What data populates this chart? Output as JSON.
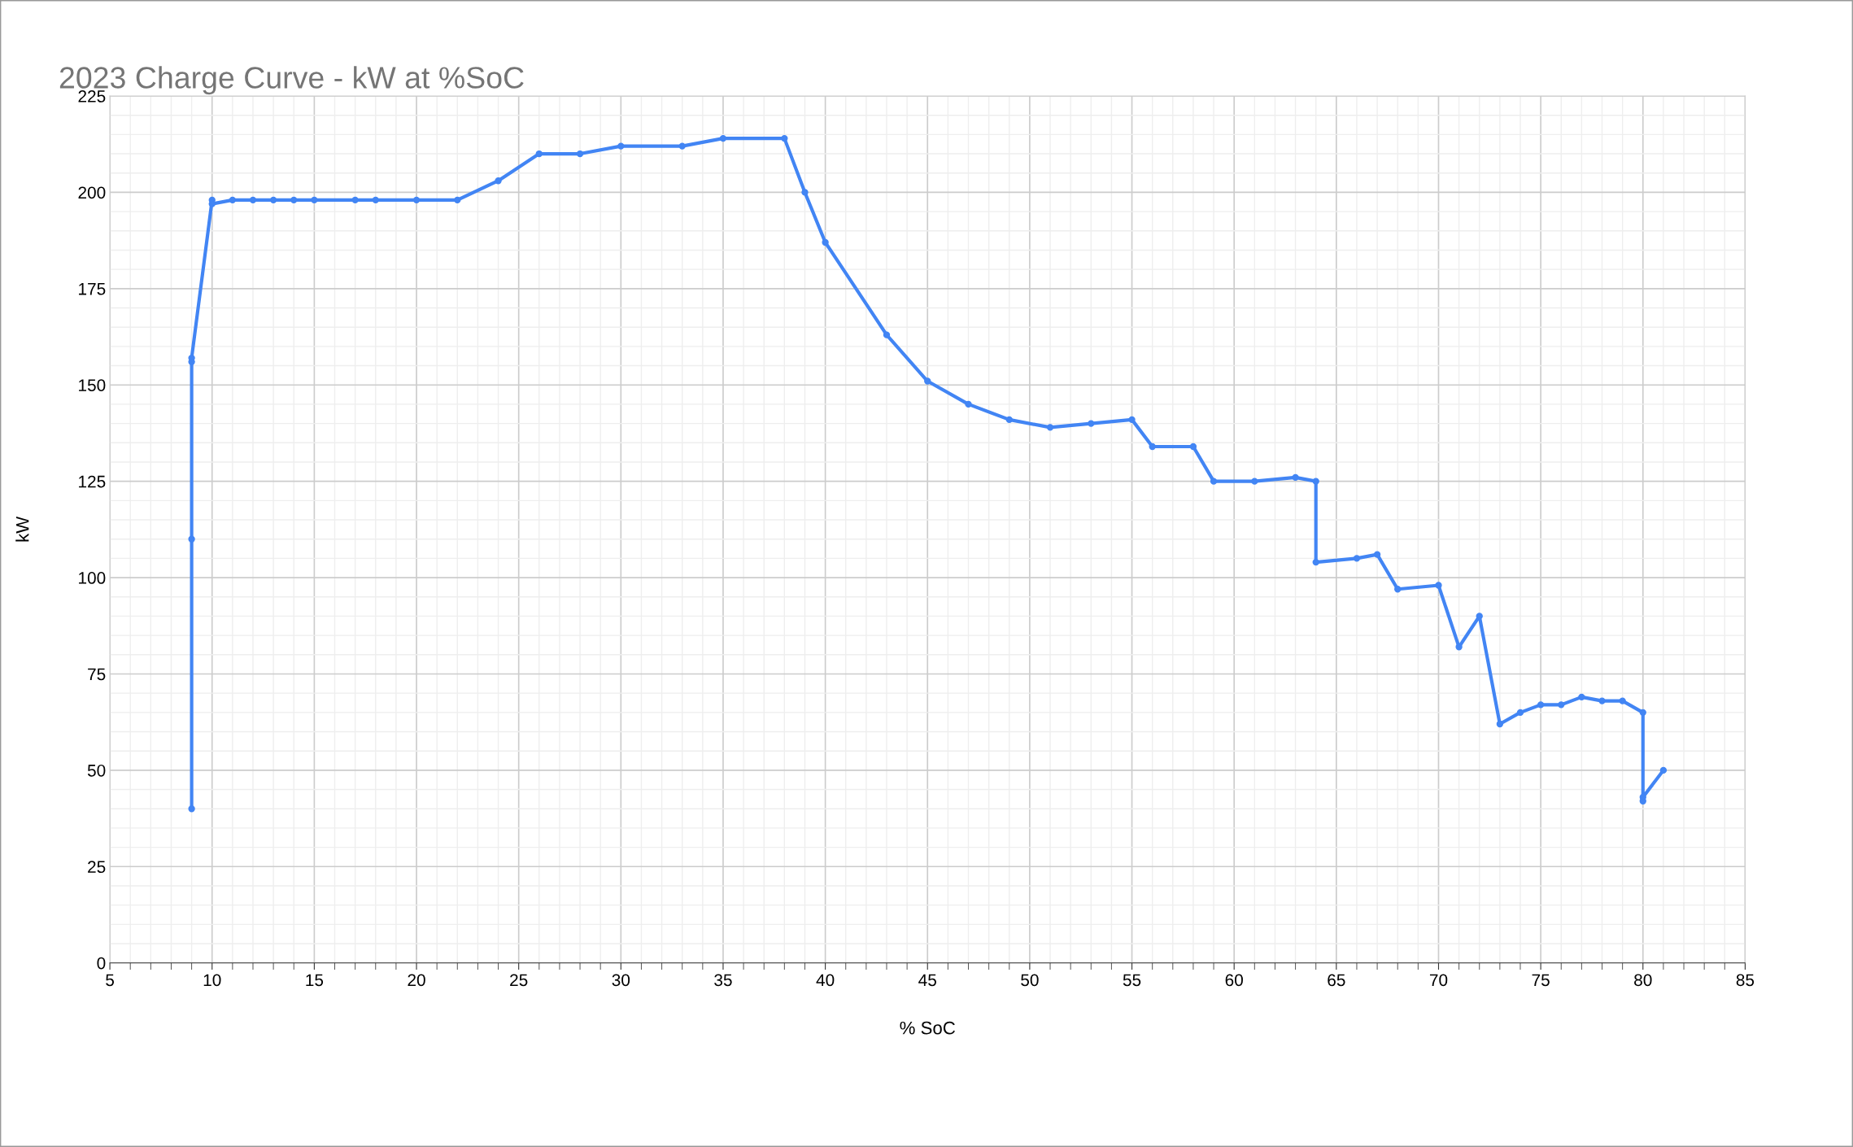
{
  "chart_data": {
    "type": "line",
    "title": "2023 Charge Curve - kW at %SoC",
    "xlabel": "% SoC",
    "ylabel": "kW",
    "xlim": [
      5,
      85
    ],
    "xticks": [
      5,
      10,
      15,
      20,
      25,
      30,
      35,
      40,
      45,
      50,
      55,
      60,
      65,
      70,
      75,
      80,
      85
    ],
    "ylim": [
      0,
      225
    ],
    "yticks": [
      0,
      25,
      50,
      75,
      100,
      125,
      150,
      175,
      200,
      225
    ],
    "grid": true,
    "marker": "circle",
    "line_style": "solid",
    "legend": false,
    "series": [
      {
        "color": "#4285f4",
        "x": [
          9,
          9,
          9,
          9,
          10,
          10,
          11,
          12,
          13,
          14,
          15,
          17,
          18,
          20,
          22,
          24,
          26,
          28,
          30,
          33,
          35,
          38,
          39,
          40,
          43,
          45,
          47,
          49,
          51,
          53,
          55,
          56,
          58,
          59,
          61,
          63,
          64,
          64,
          66,
          67,
          68,
          70,
          71,
          72,
          73,
          74,
          75,
          76,
          77,
          78,
          79,
          80,
          80,
          80,
          81
        ],
        "values": [
          40,
          110,
          156,
          157,
          198,
          197,
          198,
          198,
          198,
          198,
          198,
          198,
          198,
          198,
          198,
          203,
          210,
          210,
          212,
          212,
          214,
          214,
          200,
          187,
          163,
          151,
          145,
          141,
          139,
          140,
          141,
          134,
          134,
          125,
          125,
          126,
          125,
          104,
          105,
          106,
          97,
          98,
          82,
          90,
          62,
          65,
          67,
          67,
          69,
          68,
          68,
          65,
          42,
          43,
          50
        ]
      }
    ]
  }
}
